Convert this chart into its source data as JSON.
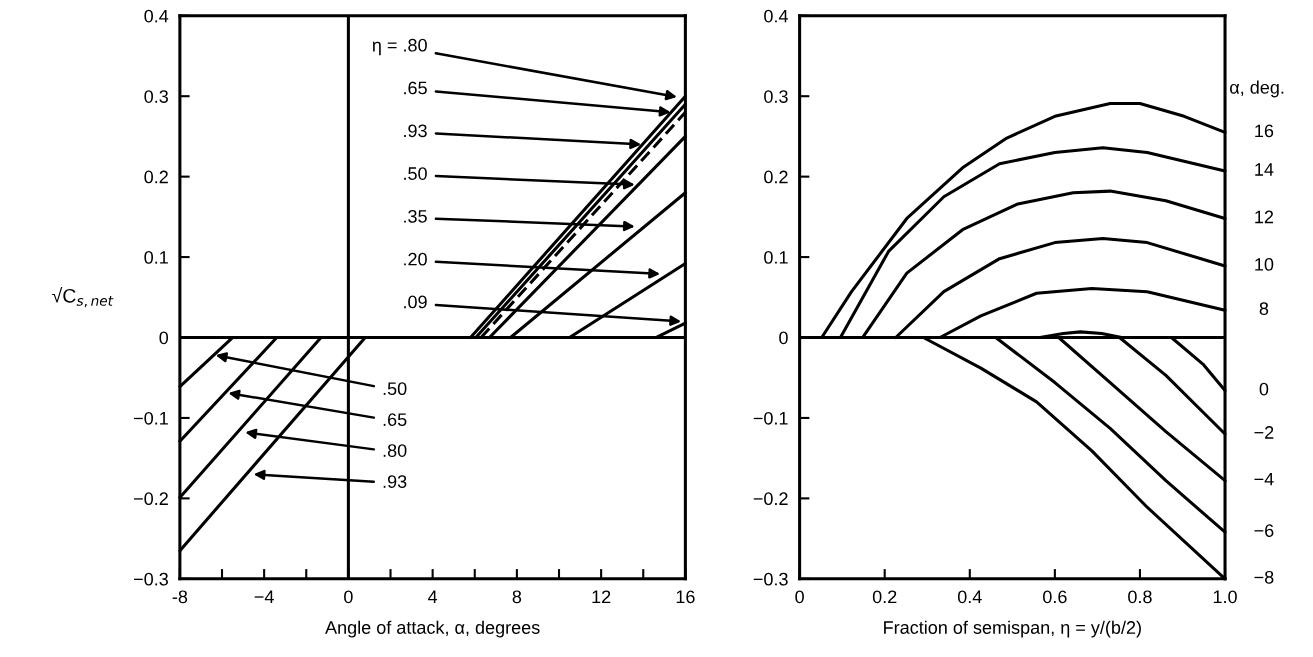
{
  "chart_data": [
    {
      "type": "line",
      "xlabel": "Angle of attack, α, degrees",
      "ylabel": "√C$_{s,net}$",
      "xlim": [
        -8,
        16
      ],
      "ylim": [
        -0.3,
        0.4
      ],
      "xticks": [
        -8,
        {
          "value": -6,
          "label": null
        },
        {
          "value": -4,
          "label": "−4"
        },
        {
          "value": -2,
          "label": null
        },
        0,
        {
          "value": 2,
          "label": null
        },
        4,
        {
          "value": 6,
          "label": null
        },
        8,
        {
          "value": 10,
          "label": null
        },
        12,
        {
          "value": 14,
          "label": null
        },
        16
      ],
      "yticks": [
        {
          "value": -0.3,
          "label": "−0.3"
        },
        {
          "value": -0.2,
          "label": "−0.2"
        },
        {
          "value": -0.1,
          "label": "−0.1"
        },
        0,
        0.1,
        0.2,
        0.3,
        0.4
      ],
      "ref_lines": [
        {
          "axis": "y",
          "value": 0,
          "color": "#000000"
        },
        {
          "axis": "x",
          "value": 0,
          "color": "#000000"
        }
      ],
      "series": [
        {
          "color": "#000000",
          "x": [
            5.8,
            16
          ],
          "values": [
            0,
            0.3
          ]
        },
        {
          "color": "#000000",
          "x": [
            6.05,
            16
          ],
          "values": [
            0,
            0.29
          ]
        },
        {
          "color": "#000000",
          "line_style": "dashed",
          "x": [
            6.3,
            16
          ],
          "values": [
            0,
            0.28
          ]
        },
        {
          "color": "#000000",
          "x": [
            6.7,
            16
          ],
          "values": [
            0,
            0.25
          ]
        },
        {
          "color": "#000000",
          "x": [
            7.7,
            16
          ],
          "values": [
            0,
            0.18
          ]
        },
        {
          "color": "#000000",
          "x": [
            10.5,
            16
          ],
          "values": [
            0,
            0.092
          ]
        },
        {
          "color": "#000000",
          "x": [
            14.6,
            16
          ],
          "values": [
            0,
            0.018
          ]
        },
        {
          "color": "#000000",
          "x": [
            -8,
            -5.5
          ],
          "values": [
            -0.061,
            0
          ]
        },
        {
          "color": "#000000",
          "x": [
            -8,
            -3.4
          ],
          "values": [
            -0.129,
            0
          ]
        },
        {
          "color": "#000000",
          "x": [
            -8,
            -1.3
          ],
          "values": [
            -0.199,
            0
          ]
        },
        {
          "color": "#000000",
          "x": [
            -8,
            0.8
          ],
          "values": [
            -0.265,
            0
          ]
        }
      ],
      "annotations": [
        {
          "text": "η = .80",
          "x": 15.6,
          "y": 0.299
        },
        {
          "text": ".65",
          "x": 15.3,
          "y": 0.28
        },
        {
          "text": ".93",
          "x": 13.9,
          "y": 0.24
        },
        {
          "text": ".50",
          "x": 13.6,
          "y": 0.19
        },
        {
          "text": ".35",
          "x": 13.6,
          "y": 0.138
        },
        {
          "text": ".20",
          "x": 14.8,
          "y": 0.079
        },
        {
          "text": ".09",
          "x": 15.8,
          "y": 0.02
        },
        {
          "text": ".50",
          "x": -6.3,
          "y": -0.022
        },
        {
          "text": ".65",
          "x": -5.7,
          "y": -0.069
        },
        {
          "text": ".80",
          "x": -4.9,
          "y": -0.118
        },
        {
          "text": ".93",
          "x": -4.5,
          "y": -0.17
        }
      ]
    },
    {
      "type": "line",
      "xlabel": "Fraction of semispan, η = y/(b/2)",
      "xlim": [
        0,
        1.0
      ],
      "ylim": [
        -0.3,
        0.4
      ],
      "xticks": [
        0,
        0.2,
        0.4,
        0.6,
        0.8,
        {
          "value": 1.0,
          "label": "1.0"
        }
      ],
      "yticks": [
        {
          "value": -0.3,
          "label": "−0.3"
        },
        {
          "value": -0.2,
          "label": "−0.2"
        },
        {
          "value": -0.1,
          "label": "−0.1"
        },
        0,
        0.1,
        0.2,
        0.3,
        0.4
      ],
      "ref_lines": [
        {
          "axis": "y",
          "value": 0,
          "color": "#000000"
        }
      ],
      "annotations": [
        "α, deg."
      ],
      "series": [
        {
          "name": "16",
          "color": "#000000",
          "x": [
            0.052,
            0.122,
            0.252,
            0.383,
            0.487,
            0.6,
            0.73,
            0.8,
            0.904,
            1.0
          ],
          "values": [
            0,
            0.057,
            0.148,
            0.211,
            0.248,
            0.275,
            0.291,
            0.291,
            0.275,
            0.255
          ]
        },
        {
          "name": "14",
          "color": "#000000",
          "x": [
            0.096,
            0.209,
            0.339,
            0.47,
            0.6,
            0.713,
            0.817,
            1.0
          ],
          "values": [
            0,
            0.107,
            0.175,
            0.216,
            0.23,
            0.236,
            0.23,
            0.207
          ]
        },
        {
          "name": "12",
          "color": "#000000",
          "x": [
            0.148,
            0.252,
            0.383,
            0.513,
            0.643,
            0.73,
            0.861,
            1.0
          ],
          "values": [
            0,
            0.08,
            0.134,
            0.166,
            0.18,
            0.182,
            0.17,
            0.148
          ]
        },
        {
          "name": "10",
          "color": "#000000",
          "x": [
            0.226,
            0.339,
            0.47,
            0.6,
            0.713,
            0.817,
            1.0
          ],
          "values": [
            0,
            0.057,
            0.098,
            0.118,
            0.123,
            0.118,
            0.089
          ]
        },
        {
          "name": "8",
          "color": "#000000",
          "x": [
            0.33,
            0.426,
            0.557,
            0.687,
            0.817,
            1.0
          ],
          "values": [
            0,
            0.027,
            0.055,
            0.061,
            0.057,
            0.034
          ]
        },
        {
          "color": "#000000",
          "x": [
            0.565,
            0.62,
            0.66,
            0.71,
            0.757
          ],
          "values": [
            0,
            0.005,
            0.007,
            0.005,
            0
          ]
        },
        {
          "name": "0",
          "color": "#000000",
          "x": [
            0.874,
            0.948,
            1.0
          ],
          "values": [
            0,
            -0.033,
            -0.066
          ]
        },
        {
          "name": "−2",
          "color": "#000000",
          "x": [
            0.752,
            0.861,
            1.0
          ],
          "values": [
            0,
            -0.047,
            -0.12
          ]
        },
        {
          "name": "−4",
          "color": "#000000",
          "x": [
            0.609,
            0.73,
            0.861,
            1.0
          ],
          "values": [
            0,
            -0.056,
            -0.117,
            -0.178
          ]
        },
        {
          "name": "−6",
          "color": "#000000",
          "x": [
            0.461,
            0.6,
            0.73,
            0.861,
            1.0
          ],
          "values": [
            0,
            -0.056,
            -0.113,
            -0.178,
            -0.242
          ]
        },
        {
          "name": "−8",
          "color": "#000000",
          "x": [
            0.291,
            0.426,
            0.557,
            0.687,
            0.817,
            1.0
          ],
          "values": [
            0,
            -0.038,
            -0.08,
            -0.141,
            -0.211,
            -0.3
          ]
        }
      ]
    }
  ]
}
